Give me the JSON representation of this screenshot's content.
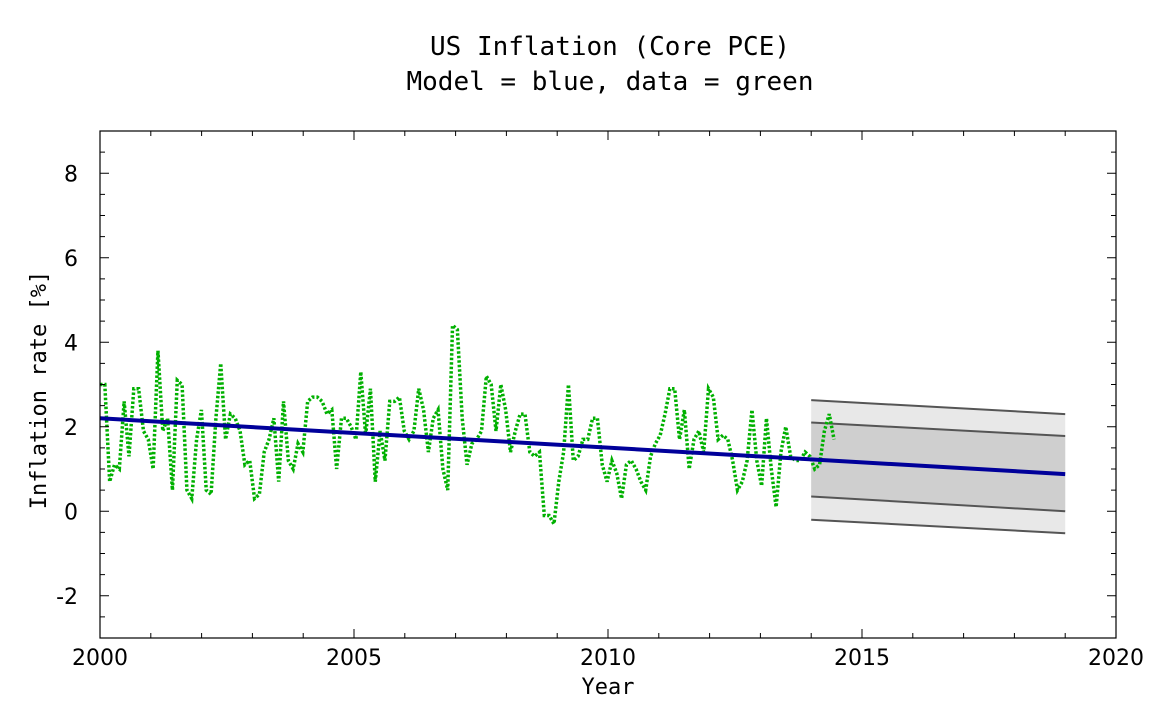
{
  "chart_data": {
    "type": "line",
    "title": "US Inflation (Core PCE)",
    "subtitle": "Model = blue, data = green",
    "xlabel": "Year",
    "ylabel": "Inflation rate [%]",
    "xlim": [
      2000,
      2020
    ],
    "ylim": [
      -3,
      9
    ],
    "xticks": [
      "2000",
      "2005",
      "2010",
      "2015",
      "2020"
    ],
    "yticks": [
      "-2",
      "0",
      "2",
      "4",
      "6",
      "8"
    ],
    "grid": false,
    "colors": {
      "model": "#00009a",
      "data": "#00b000",
      "band_outer": "#e8e8e8",
      "band_inner": "#cfcfcf",
      "band_edge": "#555555"
    },
    "data_series": {
      "start": 2000.0,
      "end": 2014.45,
      "values": [
        3.0,
        3.0,
        0.7,
        1.1,
        1.0,
        2.6,
        1.3,
        2.9,
        2.9,
        1.9,
        1.7,
        1.0,
        3.8,
        1.9,
        2.2,
        0.5,
        3.1,
        3.0,
        0.5,
        0.3,
        1.7,
        2.4,
        0.5,
        0.4,
        2.2,
        3.5,
        1.7,
        2.3,
        2.2,
        1.9,
        1.1,
        1.2,
        0.3,
        0.4,
        1.4,
        1.7,
        2.2,
        0.7,
        2.6,
        1.2,
        1.0,
        1.6,
        1.4,
        2.6,
        2.7,
        2.7,
        2.6,
        2.3,
        2.4,
        1.0,
        2.2,
        2.2,
        2.0,
        1.7,
        3.3,
        1.8,
        2.9,
        0.7,
        1.9,
        1.2,
        2.6,
        2.6,
        2.7,
        1.9,
        1.7,
        1.9,
        2.9,
        2.4,
        1.4,
        2.2,
        2.4,
        1.0,
        0.5,
        4.4,
        4.3,
        2.2,
        1.1,
        1.6,
        1.7,
        1.9,
        3.2,
        3.0,
        1.9,
        3.0,
        2.4,
        1.4,
        1.9,
        2.3,
        2.3,
        1.4,
        1.3,
        1.4,
        -0.1,
        -0.1,
        -0.3,
        0.7,
        1.4,
        3.0,
        1.2,
        1.3,
        1.7,
        1.7,
        2.2,
        2.2,
        1.1,
        0.7,
        1.2,
        0.9,
        0.3,
        1.1,
        1.2,
        1.0,
        0.7,
        0.5,
        1.3,
        1.6,
        1.8,
        2.3,
        2.9,
        2.9,
        1.7,
        2.4,
        1.0,
        1.7,
        1.9,
        1.4,
        2.9,
        2.7,
        1.7,
        1.8,
        1.7,
        1.2,
        0.5,
        0.7,
        1.2,
        2.4,
        1.2,
        0.6,
        2.2,
        1.0,
        0.1,
        1.4,
        2.0,
        1.3,
        1.2,
        1.2,
        1.4,
        1.3,
        1.0,
        1.1,
        1.9,
        2.3,
        1.7
      ]
    },
    "model": {
      "x": [
        2000,
        2019
      ],
      "y": [
        2.2,
        0.88
      ]
    },
    "forecast_bands": {
      "x": [
        2014,
        2019
      ],
      "outer_upper": [
        2.63,
        2.3
      ],
      "inner_upper": [
        2.1,
        1.78
      ],
      "inner_lower": [
        0.35,
        0.0
      ],
      "outer_lower": [
        -0.2,
        -0.52
      ]
    }
  }
}
